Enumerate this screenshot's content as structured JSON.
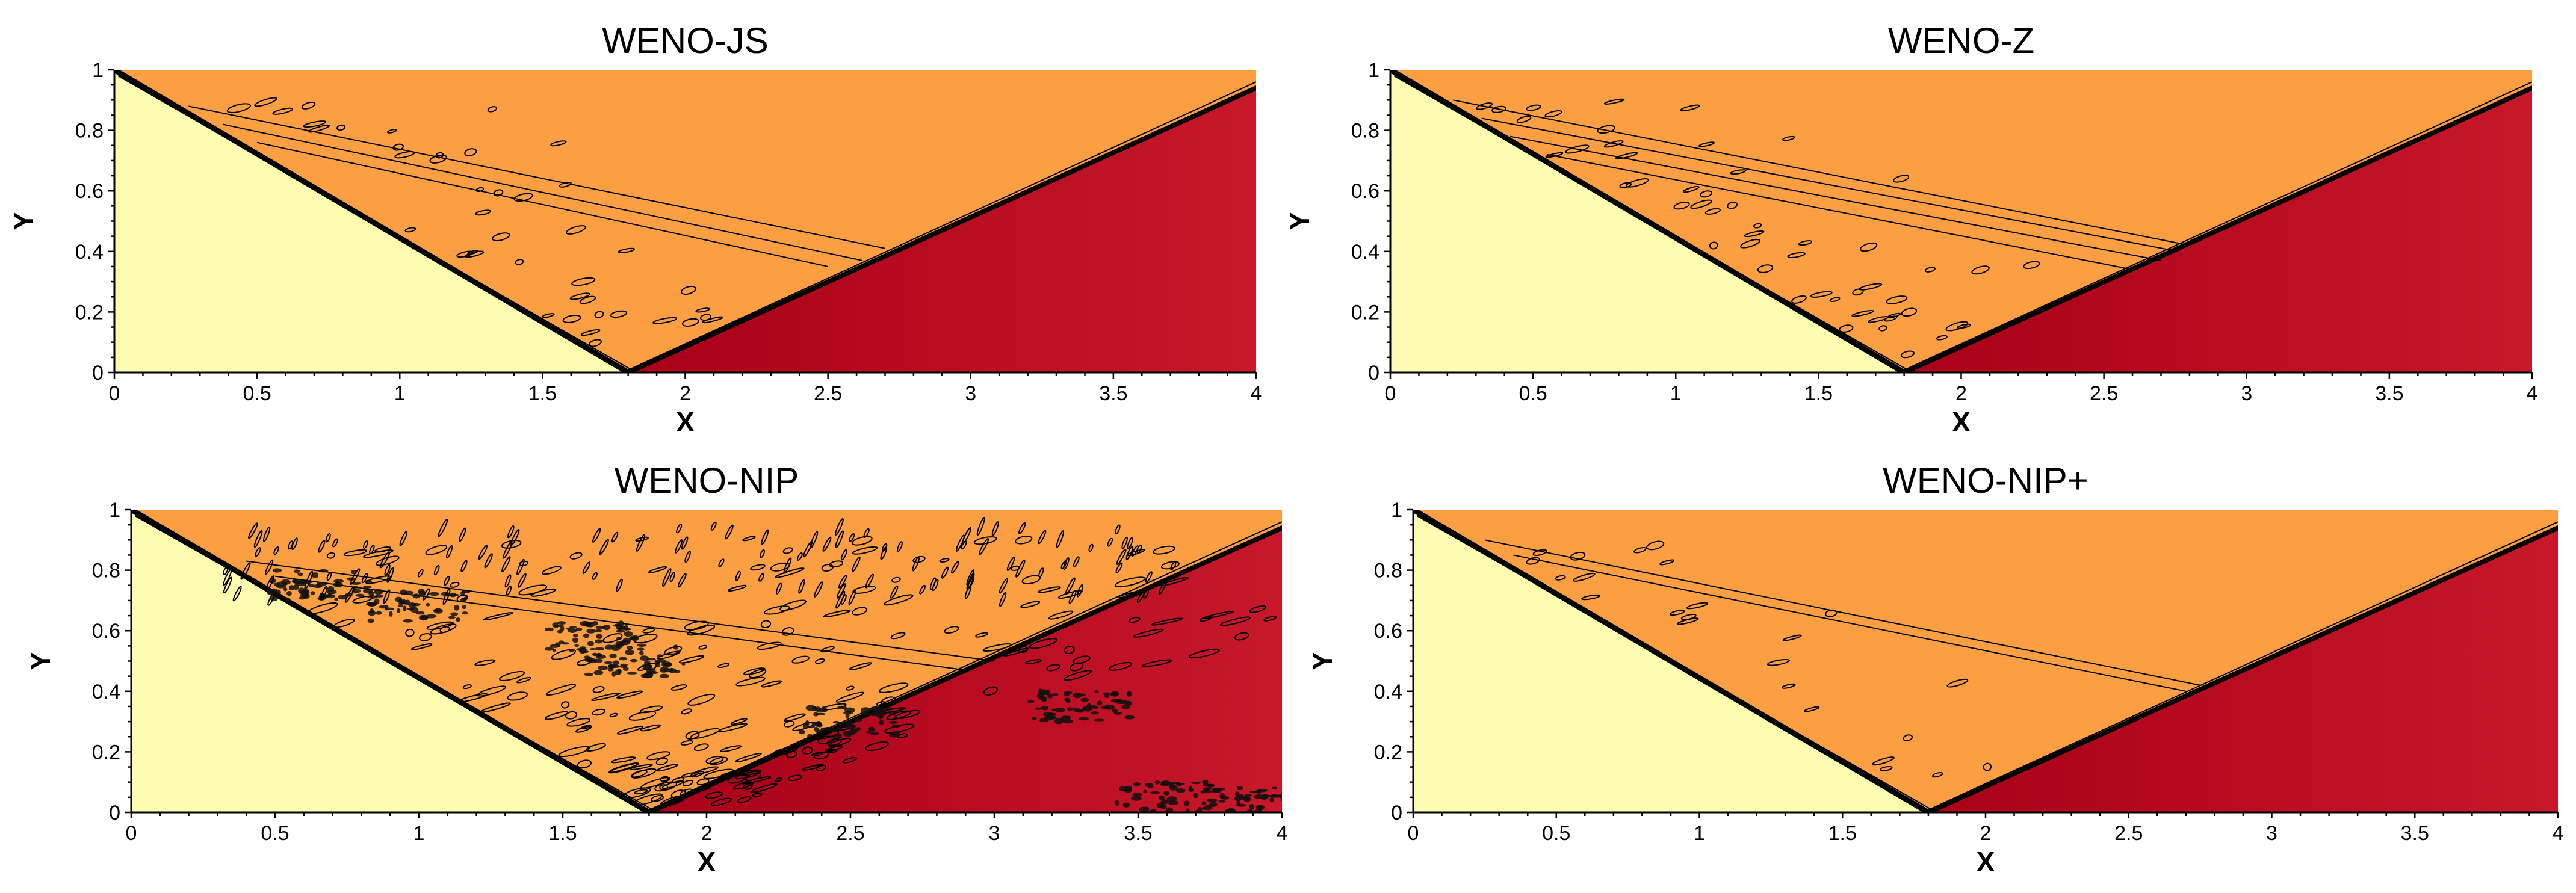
{
  "colors": {
    "pre_shock": "#fdfdb1",
    "post_incident": "#fb9f42",
    "post_reflected_dark": "#b0001f",
    "post_reflected_light": "#c61427",
    "contour_line": "#000000"
  },
  "chart_data": [
    {
      "type": "contour",
      "title": "WENO-JS",
      "xlabel": "X",
      "ylabel": "Y",
      "xlim": [
        0,
        4
      ],
      "ylim": [
        0,
        1
      ],
      "xticks": [
        0,
        0.5,
        1,
        1.5,
        2,
        2.5,
        3,
        3.5,
        4
      ],
      "xtick_labels": [
        "0",
        "0.5",
        "1",
        "1.5",
        "2",
        "2.5",
        "3",
        "3.5",
        "4"
      ],
      "yticks": [
        0,
        0.2,
        0.4,
        0.6,
        0.8,
        1
      ],
      "ytick_labels": [
        "0",
        "0.2",
        "0.4",
        "0.6",
        "0.8",
        "1"
      ],
      "incident_shock": [
        [
          0,
          1
        ],
        [
          1.8,
          0
        ]
      ],
      "reflected_shock": [
        [
          1.8,
          0
        ],
        [
          4,
          0.94
        ]
      ],
      "noise_level": 1,
      "long_contours": [
        [
          [
            0.26,
            0.88
          ],
          [
            2.7,
            0.41
          ]
        ],
        [
          [
            0.38,
            0.82
          ],
          [
            2.62,
            0.37
          ]
        ],
        [
          [
            0.5,
            0.76
          ],
          [
            2.5,
            0.35
          ]
        ]
      ]
    },
    {
      "type": "contour",
      "title": "WENO-Z",
      "xlabel": "X",
      "ylabel": "Y",
      "xlim": [
        0,
        4
      ],
      "ylim": [
        0,
        1
      ],
      "xticks": [
        0,
        0.5,
        1,
        1.5,
        2,
        2.5,
        3,
        3.5,
        4
      ],
      "xtick_labels": [
        "0",
        "0.5",
        "1",
        "1.5",
        "2",
        "2.5",
        "3",
        "3.5",
        "4"
      ],
      "yticks": [
        0,
        0.2,
        0.4,
        0.6,
        0.8,
        1
      ],
      "ytick_labels": [
        "0",
        "0.2",
        "0.4",
        "0.6",
        "0.8",
        "1"
      ],
      "incident_shock": [
        [
          0,
          1
        ],
        [
          1.8,
          0
        ]
      ],
      "reflected_shock": [
        [
          1.8,
          0
        ],
        [
          4,
          0.94
        ]
      ],
      "noise_level": 1.2,
      "long_contours": [
        [
          [
            0.22,
            0.9
          ],
          [
            2.8,
            0.42
          ]
        ],
        [
          [
            0.32,
            0.84
          ],
          [
            2.76,
            0.4
          ]
        ],
        [
          [
            0.42,
            0.78
          ],
          [
            2.7,
            0.37
          ]
        ],
        [
          [
            0.55,
            0.72
          ],
          [
            2.6,
            0.34
          ]
        ]
      ]
    },
    {
      "type": "contour",
      "title": "WENO-NIP",
      "xlabel": "X",
      "ylabel": "Y",
      "xlim": [
        0,
        4
      ],
      "ylim": [
        0,
        1
      ],
      "xticks": [
        0,
        0.5,
        1,
        1.5,
        2,
        2.5,
        3,
        3.5,
        4
      ],
      "xtick_labels": [
        "0",
        "0.5",
        "1",
        "1.5",
        "2",
        "2.5",
        "3",
        "3.5",
        "4"
      ],
      "yticks": [
        0,
        0.2,
        0.4,
        0.6,
        0.8,
        1
      ],
      "ytick_labels": [
        "0",
        "0.2",
        "0.4",
        "0.6",
        "0.8",
        "1"
      ],
      "incident_shock": [
        [
          0,
          1
        ],
        [
          1.8,
          0
        ]
      ],
      "reflected_shock": [
        [
          1.8,
          0
        ],
        [
          4,
          0.94
        ]
      ],
      "noise_level": 5,
      "long_contours": [
        [
          [
            0.4,
            0.83
          ],
          [
            3.0,
            0.5
          ]
        ],
        [
          [
            0.5,
            0.78
          ],
          [
            2.9,
            0.47
          ]
        ]
      ]
    },
    {
      "type": "contour",
      "title": "WENO-NIP+",
      "xlabel": "X",
      "ylabel": "Y",
      "xlim": [
        0,
        4
      ],
      "ylim": [
        0,
        1
      ],
      "xticks": [
        0,
        0.5,
        1,
        1.5,
        2,
        2.5,
        3,
        3.5,
        4
      ],
      "xtick_labels": [
        "0",
        "0.5",
        "1",
        "1.5",
        "2",
        "2.5",
        "3",
        "3.5",
        "4"
      ],
      "yticks": [
        0,
        0.2,
        0.4,
        0.6,
        0.8,
        1
      ],
      "ytick_labels": [
        "0",
        "0.2",
        "0.4",
        "0.6",
        "0.8",
        "1"
      ],
      "incident_shock": [
        [
          0,
          1
        ],
        [
          1.8,
          0
        ]
      ],
      "reflected_shock": [
        [
          1.8,
          0
        ],
        [
          4,
          0.94
        ]
      ],
      "noise_level": 0.6,
      "long_contours": [
        [
          [
            0.25,
            0.9
          ],
          [
            2.75,
            0.42
          ]
        ],
        [
          [
            0.35,
            0.85
          ],
          [
            2.7,
            0.4
          ]
        ]
      ]
    }
  ]
}
